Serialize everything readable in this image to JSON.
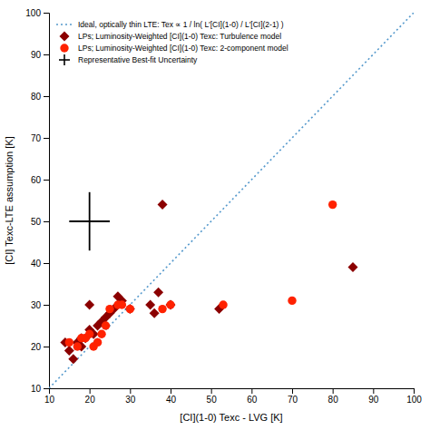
{
  "chart_data": {
    "type": "scatter",
    "xlabel": "[CI](1-0) Texc - LVG [K]",
    "ylabel": "[CI] Texc-LTE assumption [K]",
    "xlim": [
      10,
      100
    ],
    "ylim": [
      10,
      100
    ],
    "xticks": [
      10,
      20,
      30,
      40,
      50,
      60,
      70,
      80,
      90,
      100
    ],
    "yticks": [
      10,
      20,
      30,
      40,
      50,
      60,
      70,
      80,
      90,
      100
    ],
    "grid": false,
    "legend": "upper left",
    "series": [
      {
        "name": "Ideal, optically thin LTE: Tex ∝ 1 / ln( L′[CI](1-0) / L′[CI](2-1) )",
        "type": "line",
        "line_style": "dotted",
        "color": "#5599cc",
        "x": [
          10,
          100
        ],
        "values": [
          10,
          100
        ]
      },
      {
        "name": "LPs; Luminosity-Weighted [CI](1-0) Texc: Turbulence model",
        "type": "scatter",
        "marker": "diamond",
        "color": "#8B0000",
        "x": [
          14,
          15,
          16,
          17,
          18,
          18,
          19,
          20,
          20,
          21,
          22,
          23,
          24,
          25,
          26,
          27,
          28,
          30,
          35,
          36,
          37,
          38,
          40,
          52,
          85
        ],
        "values": [
          21,
          19,
          17,
          21,
          22,
          20,
          22,
          24,
          30,
          23,
          25,
          26,
          27,
          28,
          29,
          32,
          31,
          29,
          30,
          28,
          33,
          54,
          30,
          29,
          39
        ]
      },
      {
        "name": "LPs; Luminosity-Weighted [CI](1-0) Texc: 2-component model",
        "type": "scatter",
        "marker": "circle",
        "color": "#FF2200",
        "x": [
          15,
          17,
          18,
          19,
          20,
          21,
          22,
          23,
          24,
          25,
          27,
          28,
          30,
          38,
          40,
          53,
          70,
          80
        ],
        "values": [
          21,
          20,
          22,
          22,
          23,
          20,
          21,
          23,
          25,
          29,
          30,
          30,
          29,
          29,
          30,
          30,
          31,
          54
        ]
      },
      {
        "name": "Representative Best-fit Uncertainty",
        "type": "errorbar",
        "marker": "plus",
        "color": "#000000",
        "x": [
          20
        ],
        "values": [
          50
        ],
        "x_error": [
          5
        ],
        "y_error": [
          7
        ]
      }
    ]
  }
}
